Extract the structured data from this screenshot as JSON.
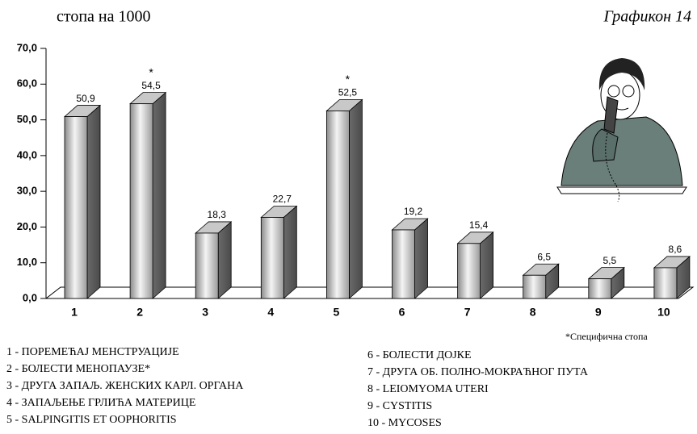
{
  "chart_data": {
    "type": "bar3d",
    "title": "стопа на 1000",
    "subtitle": "Графикон 14",
    "categories": [
      "1",
      "2",
      "3",
      "4",
      "5",
      "6",
      "7",
      "8",
      "9",
      "10"
    ],
    "values": [
      50.9,
      54.5,
      18.3,
      22.7,
      52.5,
      19.2,
      15.4,
      6.5,
      5.5,
      8.6
    ],
    "value_labels": [
      "50,9",
      "54,5",
      "18,3",
      "22,7",
      "52,5",
      "19,2",
      "15,4",
      "6,5",
      "5,5",
      "8,6"
    ],
    "ylim": [
      0,
      70
    ],
    "yticks": [
      {
        "value": 0,
        "label": "0,0"
      },
      {
        "value": 10,
        "label": "10,0"
      },
      {
        "value": 20,
        "label": "20,0"
      },
      {
        "value": 30,
        "label": "30,0"
      },
      {
        "value": 40,
        "label": "40,0"
      },
      {
        "value": 50,
        "label": "50,0"
      },
      {
        "value": 60,
        "label": "60,0"
      },
      {
        "value": 70,
        "label": "70,0"
      }
    ],
    "annotations": [
      {
        "text": "*",
        "category": "2"
      },
      {
        "text": "*",
        "category": "5"
      }
    ],
    "note": "*Специфична стопа",
    "legend": [
      "1 - ПОРЕМЕЋАЈ МЕНСТРУАЦИЈЕ",
      "2 - БОЛЕСТИ МЕНОПАУЗЕ*",
      "3 - ДРУГА ЗАПАЉ. ЖЕНСКИХ КАРЛ. ОРГАНА",
      "4 - ЗАПАЉЕЊЕ ГРЛИЋА МАТЕРИЦЕ",
      "5 - SALPINGITIS ET OOPHORITIS",
      "6 -  БОЛЕСТИ ДОЈКЕ",
      "7 -  ДРУГА ОБ. ПОЛНО-МОКРАЋНОГ ПУТА",
      "8 -  LEIOMYOMA UTERI",
      "9 - CYSTITIS",
      "10 - MYCOSES"
    ]
  }
}
